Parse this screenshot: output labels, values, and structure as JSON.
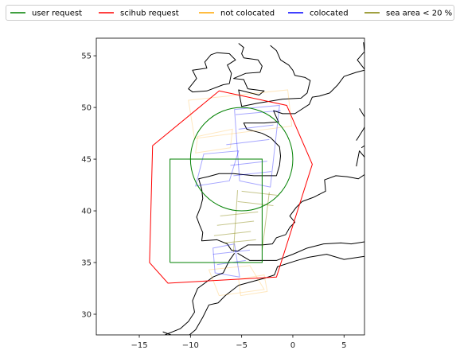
{
  "chart_data": {
    "type": "line",
    "title": "",
    "xlabel": "",
    "ylabel": "",
    "xlim": [
      -19.2,
      7
    ],
    "ylim": [
      28,
      56.7
    ],
    "xticks": [
      -15,
      -10,
      -5,
      0,
      5
    ],
    "yticks": [
      30,
      35,
      40,
      45,
      50,
      55
    ],
    "xtick_labels": [
      "−15",
      "−10",
      "−5",
      "0",
      "5"
    ],
    "ytick_labels": [
      "30",
      "35",
      "40",
      "45",
      "50",
      "55"
    ],
    "grid": false,
    "legend": {
      "placement": "top",
      "entries": [
        {
          "label": "user request",
          "color": "#008000"
        },
        {
          "label": "scihub request",
          "color": "#ff0000"
        },
        {
          "label": "not colocated",
          "color": "#ffa500"
        },
        {
          "label": "colocated",
          "color": "#0000ff"
        },
        {
          "label": "sea area < 20 %",
          "color": "#808000"
        }
      ]
    },
    "series": [
      {
        "name": "user request",
        "color": "#008000",
        "alpha": 1,
        "shapes": [
          {
            "kind": "rect",
            "points": [
              [
                -12,
                35
              ],
              [
                -3,
                35
              ],
              [
                -3,
                45
              ],
              [
                -12,
                45
              ],
              [
                -12,
                35
              ]
            ]
          },
          {
            "kind": "circle",
            "center": [
              -5,
              45
            ],
            "radius": 5
          }
        ]
      },
      {
        "name": "scihub request",
        "color": "#ff0000",
        "alpha": 1,
        "shapes": [
          {
            "kind": "polygon",
            "points": [
              [
                -7.2,
                51.6
              ],
              [
                -0.6,
                50.2
              ],
              [
                1.9,
                44.5
              ],
              [
                -1.6,
                33.6
              ],
              [
                -12.2,
                33
              ],
              [
                -14,
                35
              ],
              [
                -13.7,
                46.3
              ],
              [
                -7.2,
                51.6
              ]
            ]
          }
        ]
      },
      {
        "name": "not colocated",
        "color": "#ffa500",
        "alpha": 0.25,
        "shapes": [
          {
            "kind": "polygon",
            "points": [
              [
                -10.2,
                50.7
              ],
              [
                -0.5,
                51.7
              ],
              [
                -0.1,
                48.2
              ],
              [
                -9.6,
                47
              ]
            ]
          },
          {
            "kind": "polygon",
            "points": [
              [
                -9.3,
                47.2
              ],
              [
                -5.9,
                47.9
              ],
              [
                -6.1,
                46.1
              ],
              [
                -9.5,
                45.6
              ]
            ]
          },
          {
            "kind": "polygon",
            "points": [
              [
                -8.2,
                34.3
              ],
              [
                -4.2,
                34.7
              ],
              [
                -2.8,
                32.4
              ],
              [
                -7.2,
                31.8
              ]
            ]
          },
          {
            "kind": "polygon",
            "points": [
              [
                -5.3,
                33.4
              ],
              [
                -2.8,
                33.8
              ],
              [
                -2.5,
                32.2
              ],
              [
                -5.1,
                31.8
              ]
            ]
          }
        ]
      },
      {
        "name": "colocated",
        "color": "#0000ff",
        "alpha": 0.35,
        "shapes": [
          {
            "kind": "polygon",
            "points": [
              [
                -5.7,
                49.8
              ],
              [
                -1.3,
                50.2
              ],
              [
                -2.2,
                42.3
              ],
              [
                -5.2,
                42.9
              ]
            ]
          },
          {
            "kind": "polygon",
            "points": [
              [
                -8.7,
                45.5
              ],
              [
                -5.3,
                45.8
              ],
              [
                -6.2,
                42.9
              ],
              [
                -9.5,
                42.4
              ]
            ]
          },
          {
            "kind": "polygon",
            "points": [
              [
                -7.8,
                36.4
              ],
              [
                -5.7,
                36.8
              ],
              [
                -5.2,
                33.6
              ],
              [
                -7.6,
                34
              ]
            ]
          },
          {
            "kind": "polyline",
            "points": [
              [
                -5.6,
                49.3
              ],
              [
                -1.2,
                49.7
              ]
            ]
          },
          {
            "kind": "polyline",
            "points": [
              [
                -5.3,
                47.9
              ],
              [
                -1.9,
                48.3
              ]
            ]
          },
          {
            "kind": "polyline",
            "points": [
              [
                -6.5,
                46.4
              ],
              [
                -2.3,
                46.9
              ]
            ]
          },
          {
            "kind": "polyline",
            "points": [
              [
                -6.1,
                44.4
              ],
              [
                -2.5,
                44.8
              ]
            ]
          },
          {
            "kind": "polyline",
            "points": [
              [
                -5.8,
                43.4
              ],
              [
                -2.1,
                43.8
              ]
            ]
          },
          {
            "kind": "polyline",
            "points": [
              [
                -7.8,
                35.8
              ],
              [
                -4.2,
                36.2
              ]
            ]
          },
          {
            "kind": "polyline",
            "points": [
              [
                -7.4,
                34.8
              ],
              [
                -4.6,
                35.2
              ]
            ]
          }
        ]
      },
      {
        "name": "sea area < 20 %",
        "color": "#808000",
        "alpha": 0.45,
        "shapes": [
          {
            "kind": "polyline",
            "points": [
              [
                -5,
                41.9
              ],
              [
                -1.5,
                41.5
              ]
            ]
          },
          {
            "kind": "polyline",
            "points": [
              [
                -5.4,
                40.9
              ],
              [
                -1.9,
                40.5
              ]
            ]
          },
          {
            "kind": "polyline",
            "points": [
              [
                -7.1,
                39.5
              ],
              [
                -3.4,
                39.9
              ]
            ]
          },
          {
            "kind": "polyline",
            "points": [
              [
                -7.4,
                38.6
              ],
              [
                -3.8,
                39
              ]
            ]
          },
          {
            "kind": "polyline",
            "points": [
              [
                -7.7,
                37.6
              ],
              [
                -4.1,
                38
              ]
            ]
          },
          {
            "kind": "polyline",
            "points": [
              [
                -6.7,
                36.9
              ],
              [
                -3.6,
                37.2
              ]
            ]
          },
          {
            "kind": "polyline",
            "points": [
              [
                -5.4,
                42
              ],
              [
                -5.8,
                36
              ]
            ]
          },
          {
            "kind": "polyline",
            "points": [
              [
                -2.3,
                41.8
              ],
              [
                -3,
                36.2
              ]
            ]
          }
        ]
      }
    ],
    "coastlines": {
      "color": "#000000",
      "lines": [
        [
          [
            -5.8,
            52.8
          ],
          [
            -4.8,
            52.7
          ],
          [
            -4.4,
            51.8
          ],
          [
            -2.8,
            51.6
          ],
          [
            -3.3,
            51.2
          ],
          [
            -5.3,
            51.7
          ],
          [
            -5,
            50.1
          ],
          [
            -3.5,
            50.4
          ],
          [
            -1,
            50.8
          ],
          [
            0.8,
            50.9
          ],
          [
            1.4,
            51.4
          ],
          [
            1.7,
            52.6
          ],
          [
            1.2,
            52.9
          ],
          [
            0.2,
            53.1
          ],
          [
            0,
            53.6
          ],
          [
            -0.4,
            54.1
          ],
          [
            -1.2,
            54.6
          ],
          [
            -1.6,
            55.5
          ],
          [
            -2.2,
            56
          ]
        ],
        [
          [
            -5.8,
            52.8
          ],
          [
            -4.6,
            53.3
          ],
          [
            -3.2,
            53.4
          ],
          [
            -3,
            54
          ],
          [
            -3.4,
            54.6
          ],
          [
            -4.8,
            54.8
          ],
          [
            -5,
            55.2
          ],
          [
            -4.8,
            55.8
          ],
          [
            -5.3,
            56.2
          ]
        ],
        [
          [
            -6.2,
            52.3
          ],
          [
            -6,
            53.3
          ],
          [
            -6.4,
            54.1
          ],
          [
            -5.6,
            54.6
          ],
          [
            -6.2,
            55.2
          ],
          [
            -7.4,
            55.3
          ],
          [
            -8,
            55.1
          ],
          [
            -8.6,
            54.4
          ],
          [
            -8.4,
            53.8
          ],
          [
            -9.8,
            53.6
          ],
          [
            -9.4,
            52.8
          ],
          [
            -10.2,
            51.8
          ],
          [
            -9.8,
            51.5
          ],
          [
            -8.4,
            51.6
          ],
          [
            -6.8,
            52.2
          ],
          [
            -6.2,
            52.3
          ]
        ],
        [
          [
            -1.9,
            49.7
          ],
          [
            -1.4,
            48.6
          ],
          [
            -2.8,
            48.5
          ],
          [
            -4.8,
            48.5
          ],
          [
            -4.5,
            47.9
          ],
          [
            -3,
            47.5
          ],
          [
            -2.2,
            47.1
          ],
          [
            -1.3,
            46.2
          ],
          [
            -1.2,
            45.3
          ],
          [
            -1.3,
            44.4
          ],
          [
            -1.6,
            43.4
          ],
          [
            -2.6,
            43.4
          ],
          [
            -3.8,
            43.4
          ],
          [
            -5.8,
            43.6
          ],
          [
            -7.2,
            43.6
          ],
          [
            -8.3,
            43.3
          ],
          [
            -9.2,
            43.1
          ],
          [
            -8.9,
            42.1
          ],
          [
            -8.8,
            41.2
          ],
          [
            -9,
            40.4
          ],
          [
            -9.4,
            39.4
          ],
          [
            -9.1,
            38.6
          ],
          [
            -8.8,
            37.9
          ],
          [
            -8.9,
            37.1
          ],
          [
            -7.4,
            37.2
          ],
          [
            -6.4,
            36.8
          ],
          [
            -6,
            36.2
          ],
          [
            -5.4,
            36.1
          ],
          [
            -4.4,
            36.7
          ],
          [
            -3,
            36.7
          ],
          [
            -2,
            36.8
          ],
          [
            -1.6,
            37.4
          ],
          [
            -0.7,
            37.7
          ],
          [
            -0.3,
            38.4
          ],
          [
            0.2,
            38.9
          ],
          [
            -0.3,
            39.5
          ],
          [
            0.3,
            40.3
          ],
          [
            0.9,
            40.9
          ],
          [
            2,
            41.3
          ],
          [
            3.2,
            41.9
          ],
          [
            3.1,
            43
          ],
          [
            4.2,
            43.4
          ],
          [
            5.3,
            43.3
          ],
          [
            6.4,
            43.1
          ],
          [
            7,
            43.5
          ]
        ],
        [
          [
            -1.9,
            49.7
          ],
          [
            -1,
            49.4
          ],
          [
            0.2,
            49.4
          ],
          [
            1.6,
            50.3
          ],
          [
            1.9,
            51
          ],
          [
            2.6,
            51.1
          ],
          [
            3.6,
            51.4
          ],
          [
            4.4,
            52.2
          ],
          [
            5,
            53
          ],
          [
            6.2,
            53.4
          ],
          [
            7,
            53.6
          ]
        ],
        [
          [
            6.9,
            56.3
          ],
          [
            7,
            55.4
          ],
          [
            6.3,
            54.6
          ],
          [
            7,
            53.7
          ]
        ],
        [
          [
            6.2,
            46.8
          ],
          [
            6.9,
            47.9
          ],
          [
            7,
            48.1
          ]
        ],
        [
          [
            6.2,
            44.3
          ],
          [
            6.5,
            45.8
          ],
          [
            7,
            45.2
          ]
        ],
        [
          [
            -5.7,
            35.9
          ],
          [
            -6.2,
            35.2
          ],
          [
            -6.8,
            34
          ],
          [
            -7.8,
            33.6
          ],
          [
            -9.3,
            32.5
          ],
          [
            -9.8,
            31.3
          ],
          [
            -9.6,
            30.2
          ],
          [
            -10.2,
            29.3
          ],
          [
            -11,
            28.6
          ],
          [
            -12.5,
            28
          ]
        ],
        [
          [
            -5.4,
            35.9
          ],
          [
            -4.2,
            35.2
          ],
          [
            -2.9,
            35.2
          ],
          [
            -1.6,
            35.2
          ],
          [
            0,
            35.8
          ],
          [
            1.4,
            36.4
          ],
          [
            3,
            36.8
          ],
          [
            4.7,
            36.9
          ],
          [
            5.7,
            36.8
          ],
          [
            7,
            37
          ]
        ],
        [
          [
            -10.1,
            28
          ],
          [
            -9.5,
            28.5
          ],
          [
            -8.8,
            29.7
          ],
          [
            -8.2,
            30.9
          ],
          [
            -7.3,
            31.1
          ],
          [
            -6.6,
            31.8
          ],
          [
            -5.3,
            32.8
          ],
          [
            -4.2,
            33.1
          ],
          [
            -2.7,
            33.5
          ],
          [
            -1.8,
            33.8
          ],
          [
            -1.5,
            34.6
          ],
          [
            0.4,
            35.2
          ],
          [
            1.5,
            35.5
          ],
          [
            3.3,
            35.8
          ],
          [
            5,
            35.3
          ],
          [
            7,
            35.6
          ]
        ],
        [
          [
            -10.1,
            28
          ],
          [
            -11.9,
            28
          ],
          [
            -12.7,
            28.3
          ]
        ],
        [
          [
            6.7,
            46.1
          ],
          [
            7,
            46.3
          ]
        ],
        [
          [
            6.5,
            49.9
          ],
          [
            7,
            49.1
          ]
        ]
      ]
    }
  }
}
